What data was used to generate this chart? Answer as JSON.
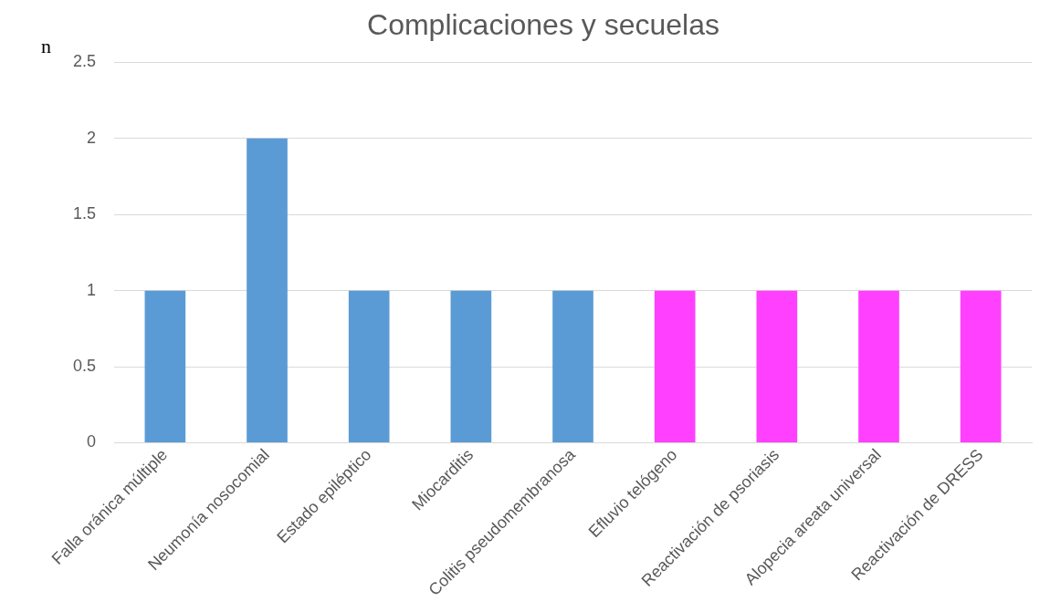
{
  "chart_data": {
    "type": "bar",
    "title": "Complicaciones y secuelas",
    "ylabel": "n",
    "categories": [
      "Falla oránica múltiple",
      "Neumonía nosocomial",
      "Estado epiléptico",
      "Miocarditis",
      "Colitis pseudomembranosa",
      "Efluvio telógeno",
      "Reactivación de psoriasis",
      "Alopecia areata universal",
      "Reactivación de DRESS"
    ],
    "values": [
      1,
      2,
      1,
      1,
      1,
      1,
      1,
      1,
      1
    ],
    "colors": [
      "#5b9bd5",
      "#5b9bd5",
      "#5b9bd5",
      "#5b9bd5",
      "#5b9bd5",
      "#ff40ff",
      "#ff40ff",
      "#ff40ff",
      "#ff40ff"
    ],
    "ylim": [
      0,
      2.5
    ],
    "yticks": [
      0,
      0.5,
      1,
      1.5,
      2,
      2.5
    ],
    "grid": "y",
    "legend": false
  }
}
